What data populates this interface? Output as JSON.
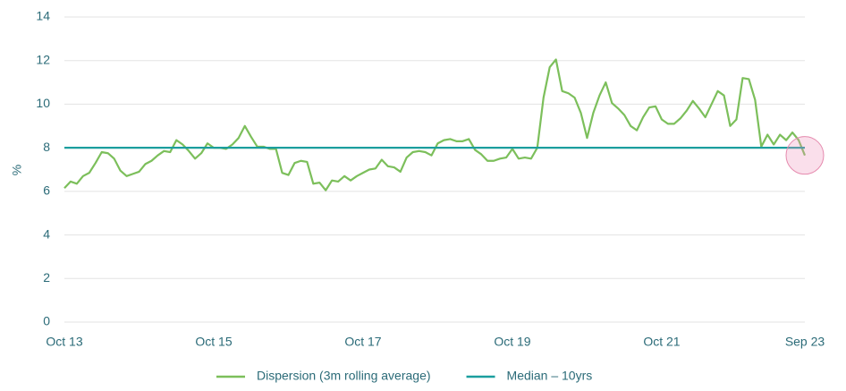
{
  "chart_data": {
    "type": "line",
    "ylabel": "%",
    "categories": [
      "Oct 13",
      null,
      null,
      null,
      null,
      null,
      null,
      null,
      null,
      null,
      null,
      null,
      null,
      null,
      null,
      null,
      null,
      null,
      null,
      null,
      null,
      null,
      null,
      null,
      "Oct 15",
      null,
      null,
      null,
      null,
      null,
      null,
      null,
      null,
      null,
      null,
      null,
      null,
      null,
      null,
      null,
      null,
      null,
      null,
      null,
      null,
      null,
      null,
      null,
      "Oct 17",
      null,
      null,
      null,
      null,
      null,
      null,
      null,
      null,
      null,
      null,
      null,
      null,
      null,
      null,
      null,
      null,
      null,
      null,
      null,
      null,
      null,
      null,
      null,
      "Oct 19",
      null,
      null,
      null,
      null,
      null,
      null,
      null,
      null,
      null,
      null,
      null,
      null,
      null,
      null,
      null,
      null,
      null,
      null,
      null,
      null,
      null,
      null,
      null,
      "Oct 21",
      null,
      null,
      null,
      null,
      null,
      null,
      null,
      null,
      null,
      null,
      null,
      null,
      null,
      null,
      null,
      null,
      null,
      null,
      null,
      null,
      null,
      null,
      "Sep 23"
    ],
    "series": [
      {
        "name": "Dispersion (3m rolling average)",
        "color": "#7cbf5b",
        "values": [
          6.15,
          6.45,
          6.35,
          6.7,
          6.85,
          7.3,
          7.8,
          7.75,
          7.5,
          6.95,
          6.7,
          6.8,
          6.9,
          7.25,
          7.4,
          7.65,
          7.85,
          7.8,
          8.35,
          8.15,
          7.85,
          7.5,
          7.75,
          8.2,
          8.0,
          8.0,
          7.95,
          8.15,
          8.45,
          9.0,
          8.5,
          8.05,
          8.05,
          7.95,
          7.95,
          6.85,
          6.75,
          7.3,
          7.4,
          7.35,
          6.35,
          6.4,
          6.05,
          6.5,
          6.45,
          6.7,
          6.5,
          6.7,
          6.85,
          7.0,
          7.05,
          7.45,
          7.15,
          7.1,
          6.9,
          7.55,
          7.8,
          7.85,
          7.8,
          7.65,
          8.2,
          8.35,
          8.4,
          8.3,
          8.3,
          8.4,
          7.9,
          7.7,
          7.4,
          7.4,
          7.5,
          7.55,
          7.95,
          7.5,
          7.55,
          7.5,
          8.0,
          10.3,
          11.7,
          12.05,
          10.6,
          10.5,
          10.3,
          9.6,
          8.45,
          9.6,
          10.4,
          11.0,
          10.05,
          9.8,
          9.5,
          9.0,
          8.8,
          9.4,
          9.85,
          9.9,
          9.3,
          9.1,
          9.1,
          9.35,
          9.7,
          10.15,
          9.8,
          9.4,
          10.0,
          10.6,
          10.4,
          9.0,
          9.3,
          11.2,
          11.15,
          10.2,
          8.05,
          8.6,
          8.15,
          8.6,
          8.35,
          8.7,
          8.35,
          7.65
        ]
      },
      {
        "name": "Median – 10yrs",
        "color": "#1b9e9e",
        "values": [
          8,
          8,
          8,
          8,
          8,
          8,
          8,
          8,
          8,
          8,
          8,
          8,
          8,
          8,
          8,
          8,
          8,
          8,
          8,
          8,
          8,
          8,
          8,
          8,
          8,
          8,
          8,
          8,
          8,
          8,
          8,
          8,
          8,
          8,
          8,
          8,
          8,
          8,
          8,
          8,
          8,
          8,
          8,
          8,
          8,
          8,
          8,
          8,
          8,
          8,
          8,
          8,
          8,
          8,
          8,
          8,
          8,
          8,
          8,
          8,
          8,
          8,
          8,
          8,
          8,
          8,
          8,
          8,
          8,
          8,
          8,
          8,
          8,
          8,
          8,
          8,
          8,
          8,
          8,
          8,
          8,
          8,
          8,
          8,
          8,
          8,
          8,
          8,
          8,
          8,
          8,
          8,
          8,
          8,
          8,
          8,
          8,
          8,
          8,
          8,
          8,
          8,
          8,
          8,
          8,
          8,
          8,
          8,
          8,
          8,
          8,
          8,
          8,
          8,
          8,
          8,
          8,
          8,
          8,
          8
        ]
      }
    ],
    "ylim": [
      0,
      14
    ],
    "yticks": [
      0,
      2,
      4,
      6,
      8,
      10,
      12,
      14
    ],
    "grid": true,
    "legend": "bottom"
  }
}
